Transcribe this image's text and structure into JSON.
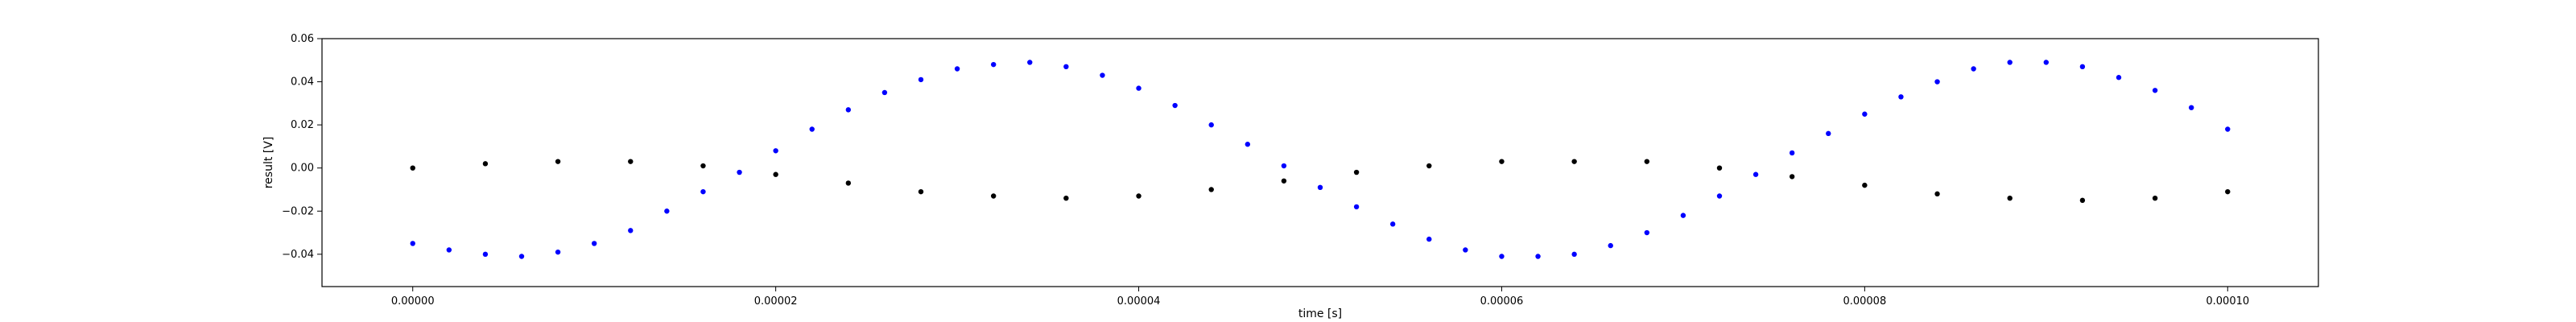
{
  "chart_data": {
    "type": "scatter",
    "title": "",
    "xlabel": "time [s]",
    "ylabel": "result [V]",
    "xlim": [
      -5e-06,
      0.000105
    ],
    "ylim": [
      -0.055,
      0.06
    ],
    "xticks": [
      0.0,
      2e-05,
      4e-05,
      6e-05,
      8e-05,
      0.0001
    ],
    "xtick_labels": [
      "0.00000",
      "0.00002",
      "0.00004",
      "0.00006",
      "0.00008",
      "0.00010"
    ],
    "yticks": [
      -0.04,
      -0.02,
      0.0,
      0.02,
      0.04,
      0.06
    ],
    "ytick_labels": [
      "−0.04",
      "−0.02",
      "0.00",
      "0.02",
      "0.04",
      "0.06"
    ],
    "grid": false,
    "legend": "none",
    "series": [
      {
        "name": "blue",
        "color": "#0000ff",
        "description": "noisy sinusoid, amplitude ≈0.045 V, period ≈0.000053 s, two interleaved traces",
        "x": [
          0.0,
          2e-06,
          4e-06,
          6e-06,
          8e-06,
          1e-05,
          1.2e-05,
          1.4e-05,
          1.6e-05,
          1.8e-05,
          2e-05,
          2.2e-05,
          2.4e-05,
          2.6e-05,
          2.8e-05,
          3e-05,
          3.2e-05,
          3.4e-05,
          3.6e-05,
          3.8e-05,
          4e-05,
          4.2e-05,
          4.4e-05,
          4.6e-05,
          4.8e-05,
          5e-05,
          5.2e-05,
          5.4e-05,
          5.6e-05,
          5.8e-05,
          6e-05,
          6.2e-05,
          6.4e-05,
          6.6e-05,
          6.8e-05,
          7e-05,
          7.2e-05,
          7.4e-05,
          7.6e-05,
          7.8e-05,
          8e-05,
          8.2e-05,
          8.4e-05,
          8.6e-05,
          8.8e-05,
          9e-05,
          9.2e-05,
          9.4e-05,
          9.6e-05,
          9.8e-05,
          0.0001
        ],
        "y": [
          -0.035,
          -0.038,
          -0.04,
          -0.041,
          -0.039,
          -0.035,
          -0.029,
          -0.02,
          -0.011,
          -0.002,
          0.008,
          0.018,
          0.027,
          0.035,
          0.041,
          0.046,
          0.048,
          0.049,
          0.047,
          0.043,
          0.037,
          0.029,
          0.02,
          0.011,
          0.001,
          -0.009,
          -0.018,
          -0.026,
          -0.033,
          -0.038,
          -0.041,
          -0.041,
          -0.04,
          -0.036,
          -0.03,
          -0.022,
          -0.013,
          -0.003,
          0.007,
          0.016,
          0.025,
          0.033,
          0.04,
          0.046,
          0.049,
          0.049,
          0.047,
          0.042,
          0.036,
          0.028,
          0.018
        ]
      },
      {
        "name": "black",
        "color": "#000000",
        "description": "low-noise slow sinusoid, amplitude ≈0.009 V",
        "x": [
          0.0,
          4e-06,
          8e-06,
          1.2e-05,
          1.6e-05,
          2e-05,
          2.4e-05,
          2.8e-05,
          3.2e-05,
          3.6e-05,
          4e-05,
          4.4e-05,
          4.8e-05,
          5.2e-05,
          5.6e-05,
          6e-05,
          6.4e-05,
          6.8e-05,
          7.2e-05,
          7.6e-05,
          8e-05,
          8.4e-05,
          8.8e-05,
          9.2e-05,
          9.6e-05,
          0.0001
        ],
        "y": [
          0.0,
          0.002,
          0.003,
          0.003,
          0.001,
          -0.003,
          -0.007,
          -0.011,
          -0.013,
          -0.014,
          -0.013,
          -0.01,
          -0.006,
          -0.002,
          0.001,
          0.003,
          0.003,
          0.003,
          0.0,
          -0.004,
          -0.008,
          -0.012,
          -0.014,
          -0.015,
          -0.014,
          -0.011
        ]
      }
    ]
  }
}
